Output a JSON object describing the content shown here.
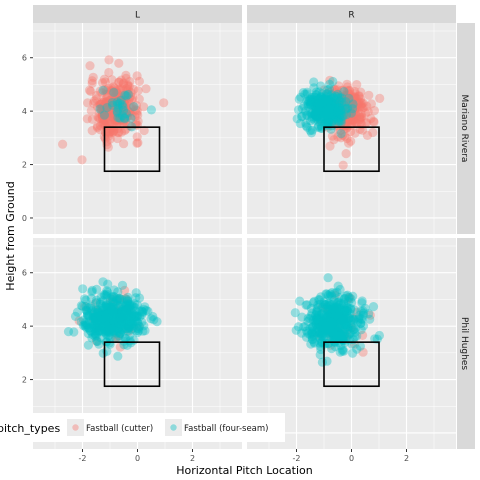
{
  "chart_data": {
    "type": "scatter",
    "xlabel": "Horizontal Pitch Location",
    "ylabel": "Height from Ground",
    "xlim": [
      -3.8,
      3.8
    ],
    "ylim": [
      -0.6,
      7.3
    ],
    "x_ticks": [
      -2,
      0,
      2
    ],
    "y_ticks": [
      0,
      2,
      4,
      6
    ],
    "grid": true,
    "col_facets": [
      "L",
      "R"
    ],
    "row_facets": [
      "Mariano Rivera",
      "Phil Hughes"
    ],
    "strike_zone": {
      "x": [
        -1.2,
        0.8
      ],
      "y": [
        1.75,
        3.4
      ],
      "x_right_panel": [
        -1.0,
        1.0
      ]
    },
    "legend": {
      "title": "pitch_types",
      "position": "bottom",
      "entries": [
        {
          "label": "Fastball (cutter)",
          "color": "#F8766D"
        },
        {
          "label": "Fastball (four-seam)",
          "color": "#00BFC4"
        }
      ]
    },
    "series": [
      {
        "name": "Fastball (cutter)",
        "color": "#F8766D",
        "clusters": [
          {
            "panel": "Mariano Rivera|L",
            "cx": -0.8,
            "cy": 4.1,
            "sx": 0.45,
            "sy": 0.55,
            "n": 320
          },
          {
            "panel": "Mariano Rivera|R",
            "cx": -0.2,
            "cy": 4.0,
            "sx": 0.45,
            "sy": 0.5,
            "n": 260
          },
          {
            "panel": "Phil Hughes|L",
            "cx": -1.0,
            "cy": 4.3,
            "sx": 0.5,
            "sy": 0.5,
            "n": 40
          },
          {
            "panel": "Phil Hughes|R",
            "cx": -0.5,
            "cy": 4.1,
            "sx": 0.5,
            "sy": 0.5,
            "n": 50
          }
        ]
      },
      {
        "name": "Fastball (four-seam)",
        "color": "#00BFC4",
        "clusters": [
          {
            "panel": "Mariano Rivera|L",
            "cx": -0.6,
            "cy": 4.1,
            "sx": 0.35,
            "sy": 0.3,
            "n": 30
          },
          {
            "panel": "Mariano Rivera|R",
            "cx": -1.0,
            "cy": 4.1,
            "sx": 0.4,
            "sy": 0.35,
            "n": 260
          },
          {
            "panel": "Phil Hughes|L",
            "cx": -0.9,
            "cy": 4.3,
            "sx": 0.55,
            "sy": 0.45,
            "n": 420
          },
          {
            "panel": "Phil Hughes|R",
            "cx": -0.6,
            "cy": 4.15,
            "sx": 0.55,
            "sy": 0.5,
            "n": 380
          }
        ]
      }
    ]
  }
}
